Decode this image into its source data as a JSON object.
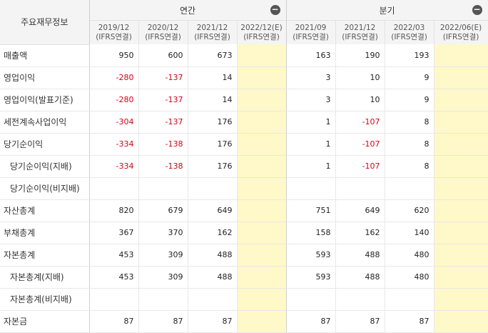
{
  "header": {
    "corner": "주요재무정보",
    "groups": {
      "annual": "연간",
      "quarterly": "분기"
    },
    "collapse_symbol": "−",
    "annual_cols": [
      {
        "period": "2019/12",
        "basis": "(IFRS연결)"
      },
      {
        "period": "2020/12",
        "basis": "(IFRS연결)"
      },
      {
        "period": "2021/12",
        "basis": "(IFRS연결)"
      },
      {
        "period": "2022/12(E)",
        "basis": "(IFRS연결)"
      }
    ],
    "quarter_cols": [
      {
        "period": "2021/09",
        "basis": "(IFRS연결)"
      },
      {
        "period": "2021/12",
        "basis": "(IFRS연결)"
      },
      {
        "period": "2022/03",
        "basis": "(IFRS연결)"
      },
      {
        "period": "2022/06(E)",
        "basis": "(IFRS연결)"
      }
    ]
  },
  "rows": [
    {
      "label": "매출액",
      "annual": [
        "950",
        "600",
        "673",
        ""
      ],
      "quarterly": [
        "163",
        "190",
        "193",
        ""
      ]
    },
    {
      "label": "영업이익",
      "annual": [
        "-280",
        "-137",
        "14",
        ""
      ],
      "quarterly": [
        "3",
        "10",
        "9",
        ""
      ]
    },
    {
      "label": "영업이익(발표기준)",
      "annual": [
        "-280",
        "-137",
        "14",
        ""
      ],
      "quarterly": [
        "3",
        "10",
        "9",
        ""
      ]
    },
    {
      "label": "세전계속사업이익",
      "annual": [
        "-304",
        "-137",
        "176",
        ""
      ],
      "quarterly": [
        "1",
        "-107",
        "8",
        ""
      ]
    },
    {
      "label": "당기순이익",
      "annual": [
        "-334",
        "-138",
        "176",
        ""
      ],
      "quarterly": [
        "1",
        "-107",
        "8",
        ""
      ]
    },
    {
      "label": "당기순이익(지배)",
      "annual": [
        "-334",
        "-138",
        "176",
        ""
      ],
      "quarterly": [
        "1",
        "-107",
        "8",
        ""
      ]
    },
    {
      "label": "당기순이익(비지배)",
      "annual": [
        "",
        "",
        "",
        ""
      ],
      "quarterly": [
        "",
        "",
        "",
        ""
      ]
    },
    {
      "label": "자산총계",
      "annual": [
        "820",
        "679",
        "649",
        ""
      ],
      "quarterly": [
        "751",
        "649",
        "620",
        ""
      ]
    },
    {
      "label": "부채총계",
      "annual": [
        "367",
        "370",
        "162",
        ""
      ],
      "quarterly": [
        "158",
        "162",
        "140",
        ""
      ]
    },
    {
      "label": "자본총계",
      "annual": [
        "453",
        "309",
        "488",
        ""
      ],
      "quarterly": [
        "593",
        "488",
        "480",
        ""
      ]
    },
    {
      "label": "자본총계(지배)",
      "annual": [
        "453",
        "309",
        "488",
        ""
      ],
      "quarterly": [
        "593",
        "488",
        "480",
        ""
      ]
    },
    {
      "label": "자본총계(비지배)",
      "annual": [
        "",
        "",
        "",
        ""
      ],
      "quarterly": [
        "",
        "",
        "",
        ""
      ]
    },
    {
      "label": "자본금",
      "annual": [
        "87",
        "87",
        "87",
        ""
      ],
      "quarterly": [
        "87",
        "87",
        "87",
        ""
      ]
    }
  ],
  "colors": {
    "negative": "#d0021b",
    "estimate_bg": "#fff8c8",
    "header_bg": "#f4f4f4"
  }
}
